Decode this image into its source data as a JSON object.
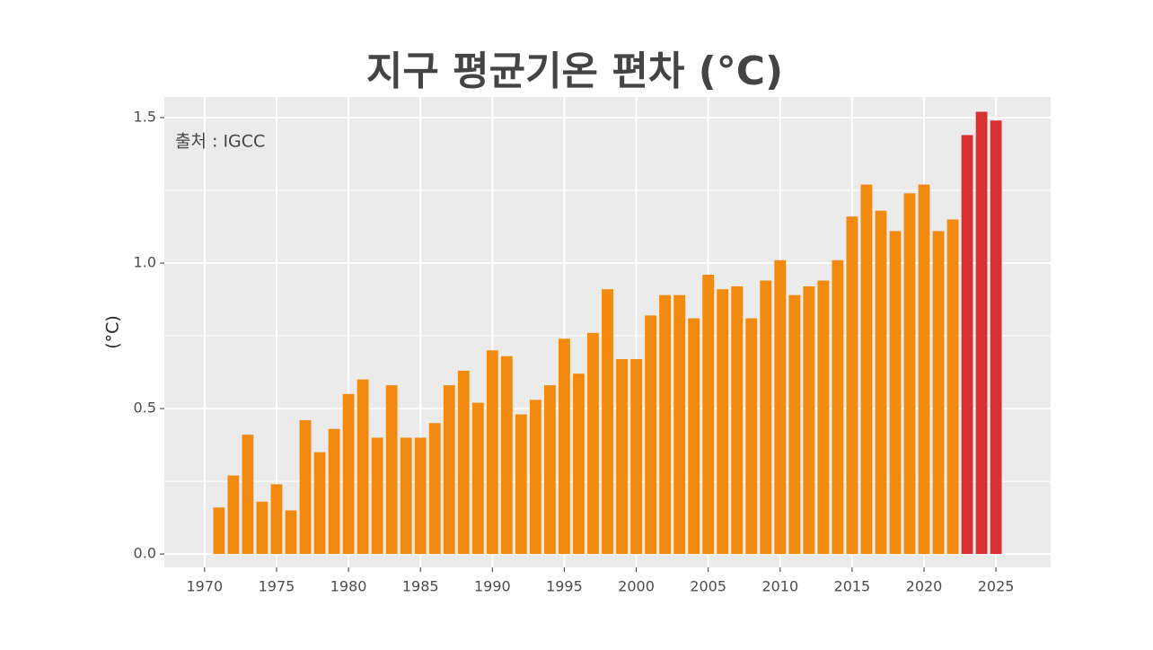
{
  "chart_data": {
    "type": "bar",
    "title": "지구 평균기온 편차 (°C)",
    "ylabel": "(°C)",
    "annotation": "출처 : IGCC",
    "x": [
      1971,
      1972,
      1973,
      1974,
      1975,
      1976,
      1977,
      1978,
      1979,
      1980,
      1981,
      1982,
      1983,
      1984,
      1985,
      1986,
      1987,
      1988,
      1989,
      1990,
      1991,
      1992,
      1993,
      1994,
      1995,
      1996,
      1997,
      1998,
      1999,
      2000,
      2001,
      2002,
      2003,
      2004,
      2005,
      2006,
      2007,
      2008,
      2009,
      2010,
      2011,
      2012,
      2013,
      2014,
      2015,
      2016,
      2017,
      2018,
      2019,
      2020,
      2021,
      2022,
      2023,
      2024,
      2025
    ],
    "values": [
      0.16,
      0.27,
      0.41,
      0.18,
      0.24,
      0.15,
      0.46,
      0.35,
      0.43,
      0.55,
      0.6,
      0.4,
      0.58,
      0.4,
      0.4,
      0.45,
      0.58,
      0.63,
      0.52,
      0.7,
      0.68,
      0.48,
      0.53,
      0.58,
      0.74,
      0.62,
      0.76,
      0.91,
      0.67,
      0.67,
      0.82,
      0.89,
      0.89,
      0.81,
      0.96,
      0.91,
      0.92,
      0.81,
      0.94,
      1.01,
      0.89,
      0.92,
      0.94,
      1.01,
      1.16,
      1.27,
      1.18,
      1.11,
      1.24,
      1.27,
      1.11,
      1.15,
      1.44,
      1.52,
      1.49
    ],
    "colors": [
      "#f28a10",
      "#f28a10",
      "#f28a10",
      "#f28a10",
      "#f28a10",
      "#f28a10",
      "#f28a10",
      "#f28a10",
      "#f28a10",
      "#f28a10",
      "#f28a10",
      "#f28a10",
      "#f28a10",
      "#f28a10",
      "#f28a10",
      "#f28a10",
      "#f28a10",
      "#f28a10",
      "#f28a10",
      "#f28a10",
      "#f28a10",
      "#f28a10",
      "#f28a10",
      "#f28a10",
      "#f28a10",
      "#f28a10",
      "#f28a10",
      "#f28a10",
      "#f28a10",
      "#f28a10",
      "#f28a10",
      "#f28a10",
      "#f28a10",
      "#f28a10",
      "#f28a10",
      "#f28a10",
      "#f28a10",
      "#f28a10",
      "#f28a10",
      "#f28a10",
      "#f28a10",
      "#f28a10",
      "#f28a10",
      "#f28a10",
      "#f28a10",
      "#f28a10",
      "#f28a10",
      "#f28a10",
      "#f28a10",
      "#f28a10",
      "#f28a10",
      "#f28a10",
      "#d93033",
      "#d93033",
      "#d93033"
    ],
    "xlim": [
      1967.2,
      2028.8
    ],
    "xticks": [
      1970,
      1975,
      1980,
      1985,
      1990,
      1995,
      2000,
      2005,
      2010,
      2015,
      2020,
      2025
    ],
    "ylim": [
      -0.046,
      1.571
    ],
    "yticks": [
      {
        "value": 0,
        "label": "0.0"
      },
      0.5,
      {
        "value": 1,
        "label": "1.0"
      },
      1.5
    ],
    "minor_yticks": [
      0.25,
      0.75,
      1.25
    ],
    "grid": true
  }
}
